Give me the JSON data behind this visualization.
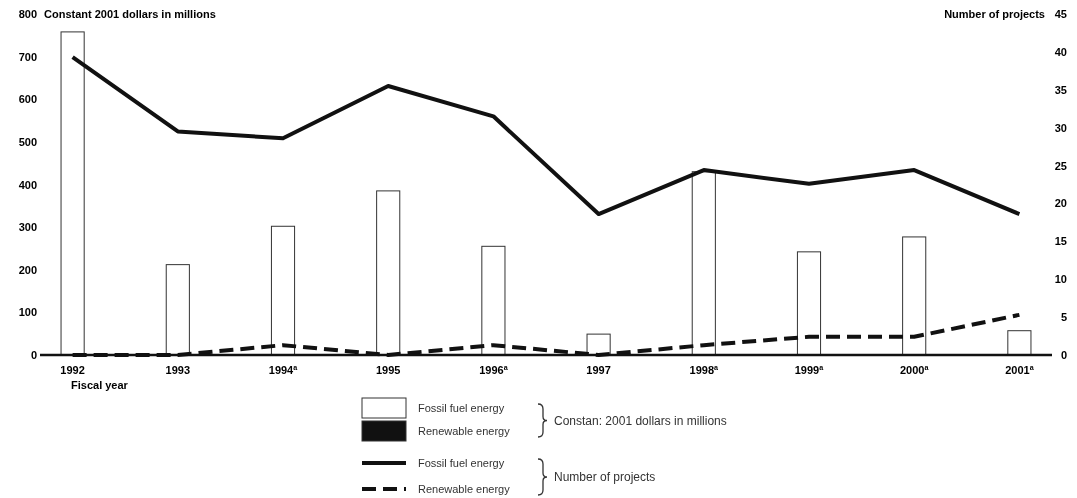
{
  "chart_data": {
    "type": "bar",
    "ylabel": "Constant 2001 dollars in millions",
    "y2label": "Number of projects",
    "xlabel": "Fiscal year",
    "categories": [
      "1992",
      "1993",
      "1994$^{a}$",
      "1995",
      "1996$^{a}$",
      "1997",
      "1998$^{a}$",
      "1999$^{a}$",
      "2000$^{a}$",
      "2001$^{a}$"
    ],
    "series": [
      {
        "name": "Fossil fuel energy",
        "color": "#ffffff",
        "values": [
          758,
          212,
          302,
          385,
          255,
          49,
          430,
          242,
          277,
          57
        ]
      },
      {
        "name": "Renewable energy",
        "color": "#111111",
        "values": [
          0,
          0,
          0,
          0,
          0,
          0,
          0,
          0,
          0,
          0
        ]
      },
      {
        "name": "Fossil fuel energy",
        "type": "line",
        "axis": "y2",
        "color": "#111111",
        "line_style": "solid",
        "values": [
          39.3,
          29.5,
          28.6,
          35.5,
          31.5,
          18.6,
          24.4,
          22.6,
          24.4,
          18.6
        ]
      },
      {
        "name": "Renewable energy",
        "type": "line",
        "axis": "y2",
        "color": "#111111",
        "line_style": "dashed",
        "values": [
          0,
          0,
          1.3,
          0,
          1.3,
          0,
          1.3,
          2.4,
          2.4,
          5.3
        ]
      }
    ],
    "ylim": [
      0,
      800
    ],
    "yticks": [
      0,
      100,
      200,
      300,
      400,
      500,
      600,
      700,
      800
    ],
    "y2lim": [
      0,
      45
    ],
    "y2ticks": [
      0,
      5,
      10,
      15,
      20,
      25,
      30,
      35,
      40,
      45
    ],
    "legend": "bottom",
    "grid": false,
    "marker": "none",
    "annotations": [
      "Constan: 2001 dollars in millions",
      "Number of projects"
    ]
  }
}
